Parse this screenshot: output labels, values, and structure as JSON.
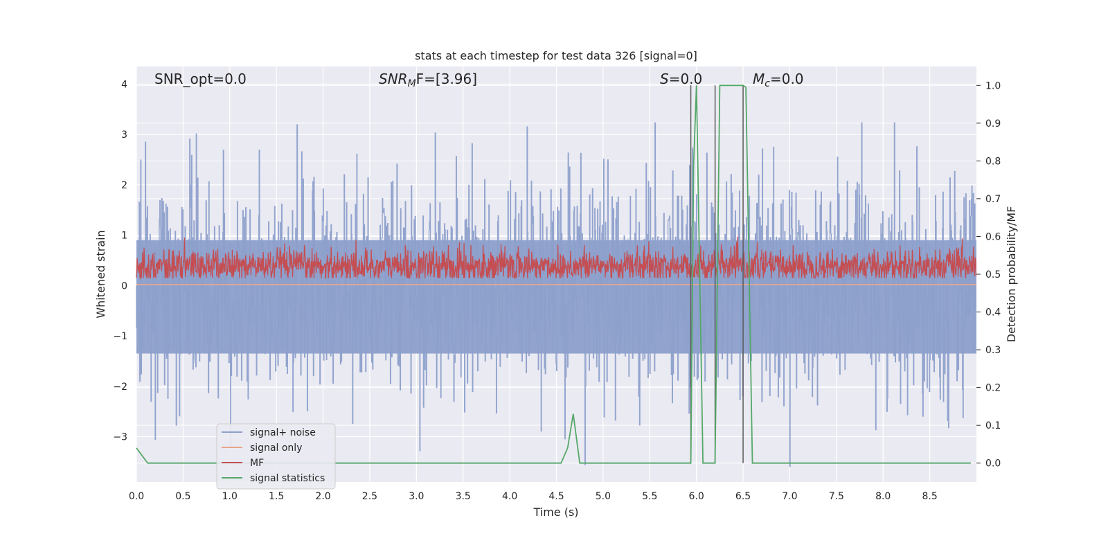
{
  "chart_data": {
    "type": "line",
    "title": "stats at each timestep for test data 326 [signal=0]",
    "xlabel": "Time (s)",
    "ylabel": "Whitened strain",
    "ylabel_right": "Detection probability/MF",
    "xlim": [
      0.0,
      9.0
    ],
    "ylim": [
      -3.9,
      4.35
    ],
    "ylim_right": [
      -0.05,
      1.05
    ],
    "x_ticks": [
      "0.0",
      "0.5",
      "1.0",
      "1.5",
      "2.0",
      "2.5",
      "3.0",
      "3.5",
      "4.0",
      "4.5",
      "5.0",
      "5.5",
      "6.0",
      "6.5",
      "7.0",
      "7.5",
      "8.0",
      "8.5"
    ],
    "y_ticks": [
      "4",
      "3",
      "2",
      "1",
      "0",
      "−1",
      "−2",
      "−3"
    ],
    "y_ticks_right": [
      "1.0",
      "0.9",
      "0.8",
      "0.7",
      "0.6",
      "0.5",
      "0.4",
      "0.3",
      "0.2",
      "0.1",
      "0.0"
    ],
    "annotations": {
      "snr_opt": "SNR_opt=0.0",
      "snr_mf_main": "SNR",
      "snr_mf_sub": "M",
      "snr_mf_rest": "F=[3.96]",
      "s_main": "S",
      "s_rest": "=0.0",
      "mc_main": "M",
      "mc_sub": "c",
      "mc_rest": "=0.0"
    },
    "legend": {
      "position": "lower-left",
      "entries": [
        "signal+ noise",
        "signal only",
        "MF",
        "signal statistics"
      ]
    },
    "grid": true,
    "colors": {
      "background": "#eaeaf2",
      "grid": "#ffffff",
      "signal_noise": "#8da0cb",
      "signal_only": "#e8a58c",
      "mf": "#c44e52",
      "signal_statistics": "#55a868",
      "vlines": "#595959"
    },
    "series": [
      {
        "name": "signal statistics",
        "axis": "right",
        "x": [
          0.0,
          0.12,
          0.5,
          1.0,
          2.0,
          3.0,
          4.0,
          4.55,
          4.62,
          4.68,
          4.75,
          5.0,
          5.5,
          5.94,
          5.97,
          6.0,
          6.07,
          6.2,
          6.25,
          6.5,
          6.53,
          6.6,
          7.0,
          8.0,
          8.94
        ],
        "y": [
          0.04,
          0.0,
          0.0,
          0.0,
          0.0,
          0.0,
          0.0,
          0.0,
          0.04,
          0.13,
          0.0,
          0.0,
          0.0,
          0.0,
          0.79,
          1.0,
          0.0,
          0.0,
          1.0,
          1.0,
          0.995,
          0.0,
          0.0,
          0.0,
          0.0
        ]
      },
      {
        "name": "signal only",
        "axis": "left",
        "x": [
          0.0,
          9.0
        ],
        "y": [
          0.02,
          0.02
        ]
      }
    ],
    "mf_trace": {
      "center": 0.5,
      "min": 0.49,
      "max": 0.59,
      "peak": 0.6
    },
    "noise_trace": {
      "sigma": 1.3,
      "max": 3.24,
      "min": -3.6
    },
    "vlines": [
      5.94,
      6.2,
      6.5
    ]
  }
}
